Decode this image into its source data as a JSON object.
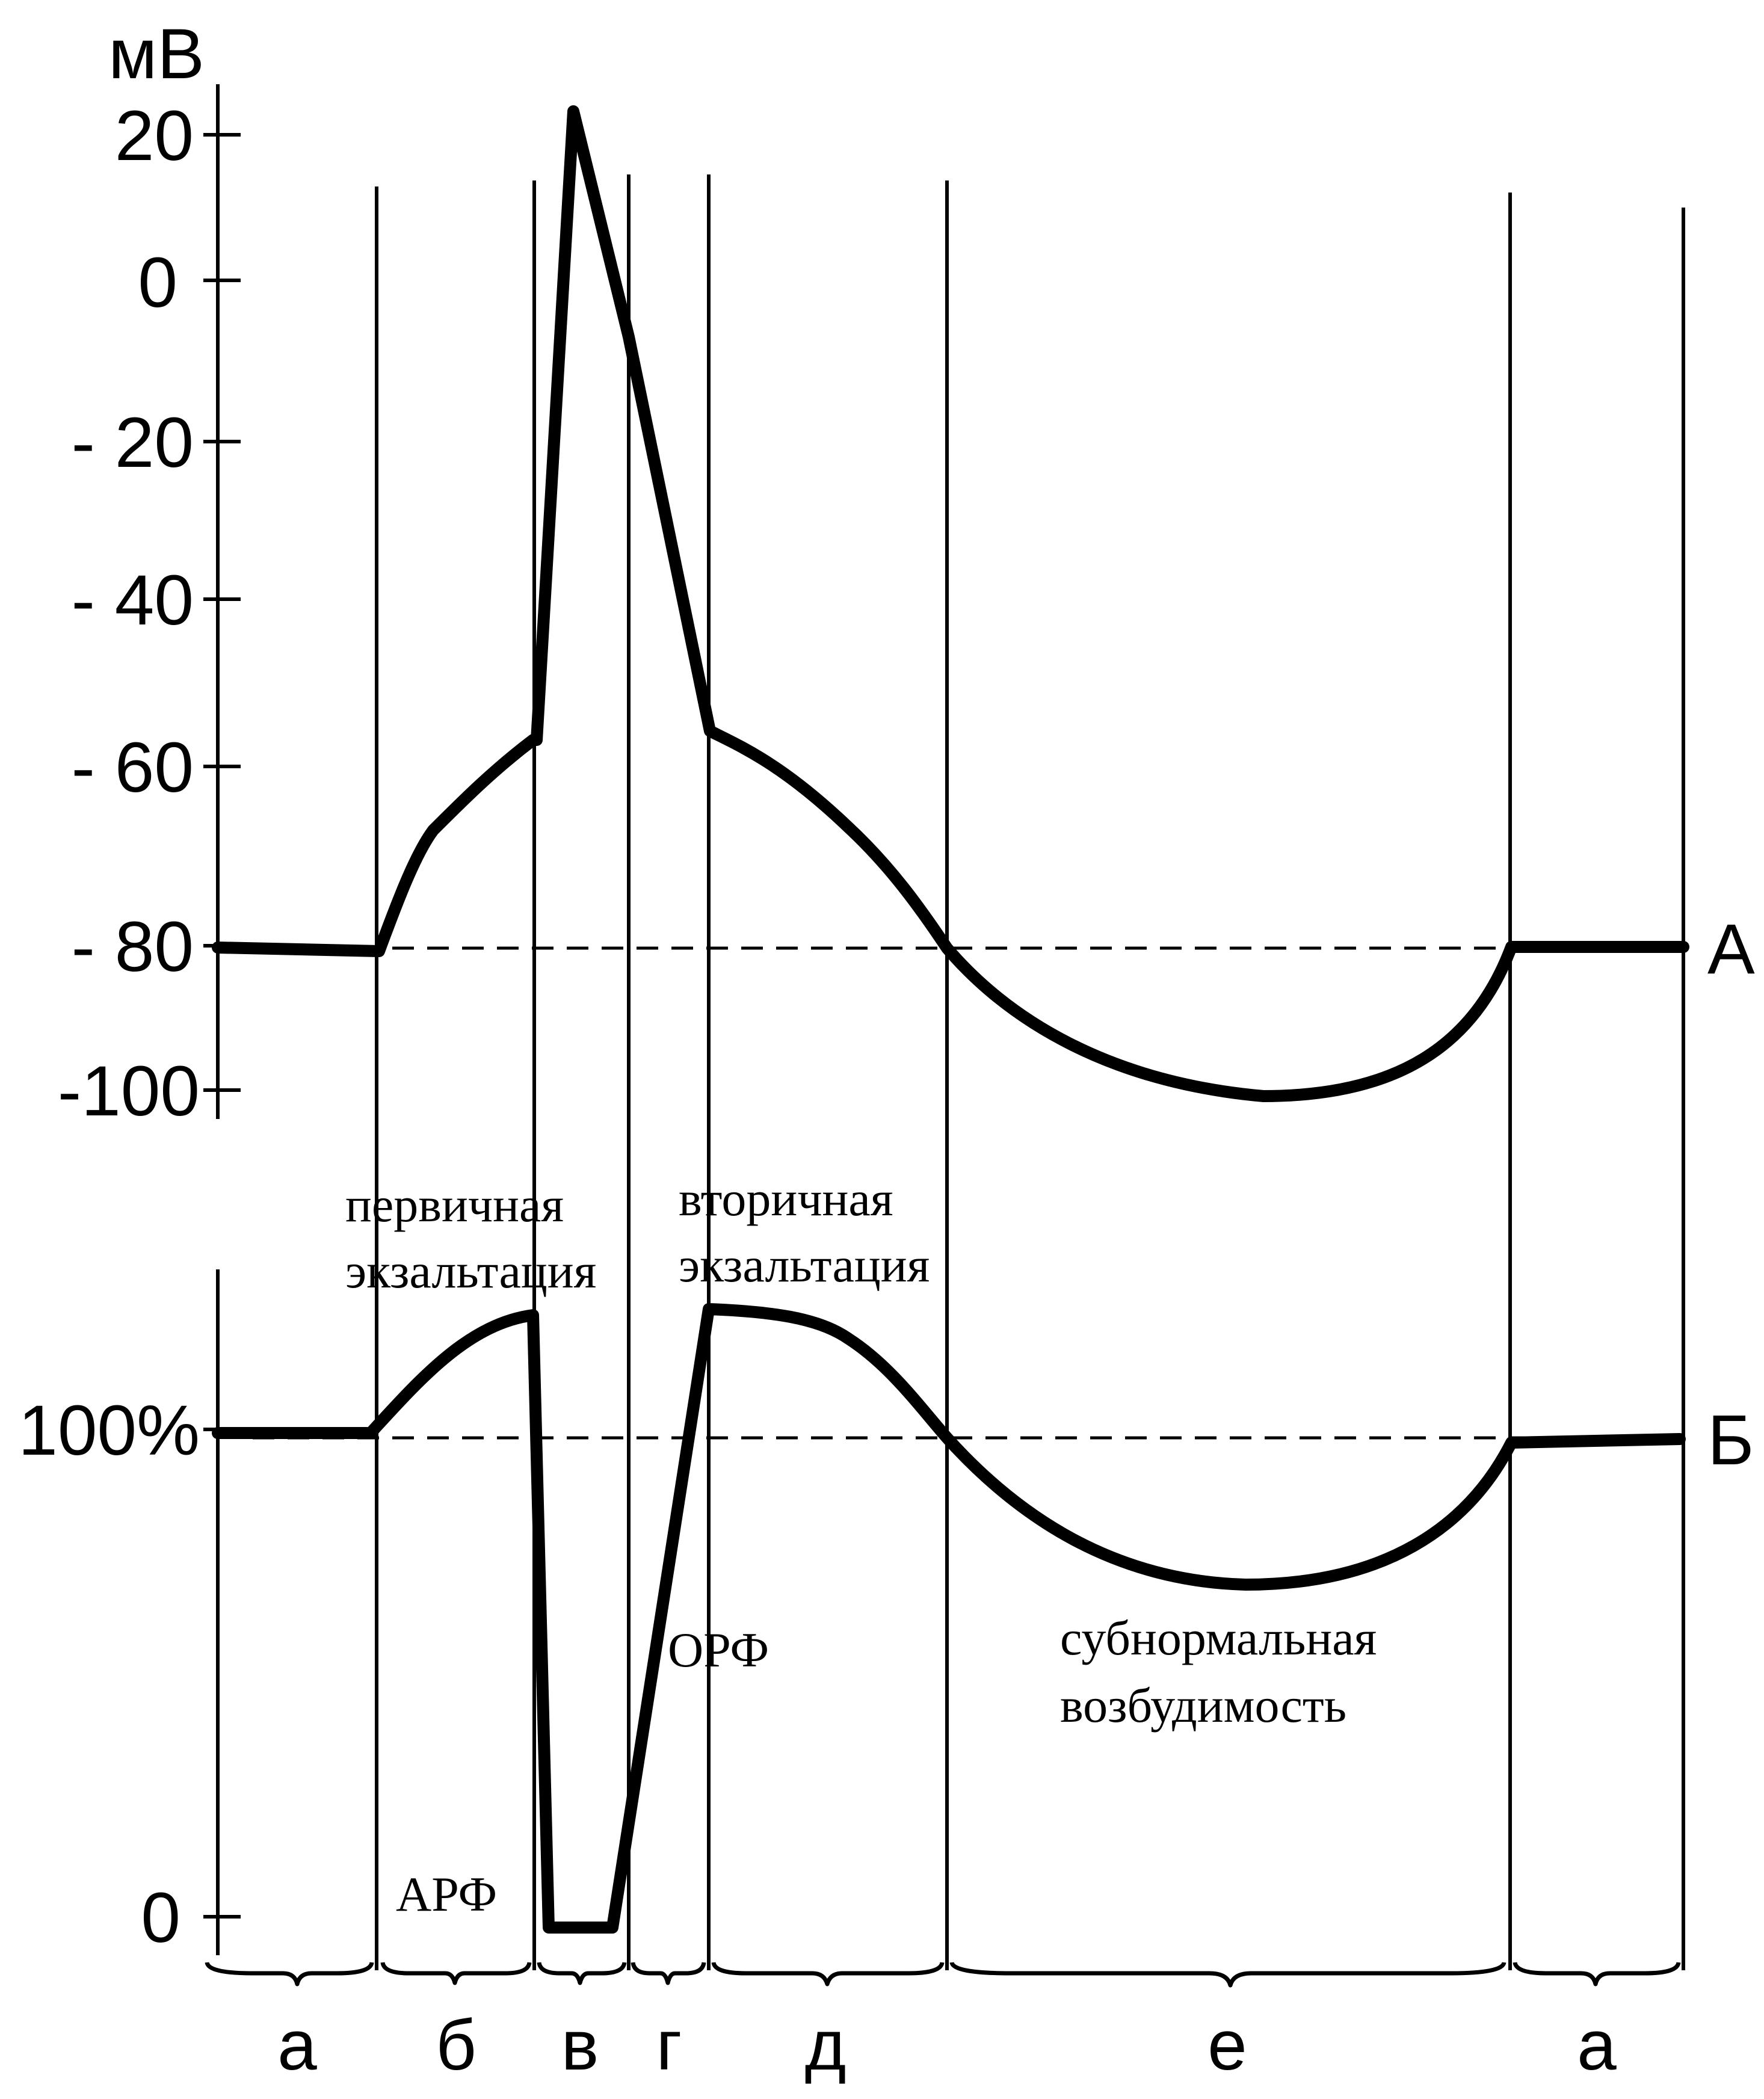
{
  "panel_a": {
    "unit_label": "мВ",
    "ticks": [
      "20",
      "0",
      "- 20",
      "- 40",
      "- 60",
      "- 80",
      "-100"
    ],
    "curve_label": "А"
  },
  "panel_b": {
    "ticks": [
      "100%",
      "0"
    ],
    "curve_label": "Б"
  },
  "annotations": {
    "primary_line1": "первичная",
    "primary_line2": "экзальтация",
    "secondary_line1": "вторичная",
    "secondary_line2": "экзальтация",
    "arf": "АРФ",
    "orf": "ОРФ",
    "subnormal_line1": "субнормальная",
    "subnormal_line2": "возбудимость"
  },
  "phases": [
    "а",
    "б",
    "в",
    "г",
    "д",
    "е",
    "а"
  ]
}
